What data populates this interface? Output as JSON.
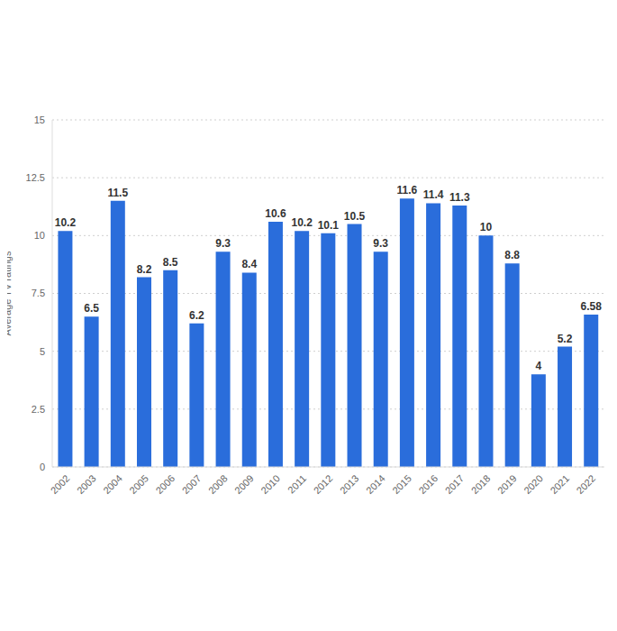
{
  "chart_data": {
    "type": "bar",
    "y_label": "Average TV ratings",
    "categories": [
      "2002",
      "2003",
      "2004",
      "2005",
      "2006",
      "2007",
      "2008",
      "2009",
      "2010",
      "2011",
      "2012",
      "2013",
      "2014",
      "2015",
      "2016",
      "2017",
      "2018",
      "2019",
      "2020",
      "2021",
      "2022"
    ],
    "values": [
      10.2,
      6.5,
      11.5,
      8.2,
      8.5,
      6.2,
      9.3,
      8.4,
      10.6,
      10.2,
      10.1,
      10.5,
      9.3,
      11.6,
      11.4,
      11.3,
      10,
      8.8,
      4,
      5.2,
      6.58
    ],
    "color": "#2a6ddb",
    "ylim": [
      0,
      15
    ],
    "yticks": [
      0,
      2.5,
      5,
      7.5,
      10,
      12.5,
      15
    ],
    "grid": true,
    "data_labels": true
  }
}
